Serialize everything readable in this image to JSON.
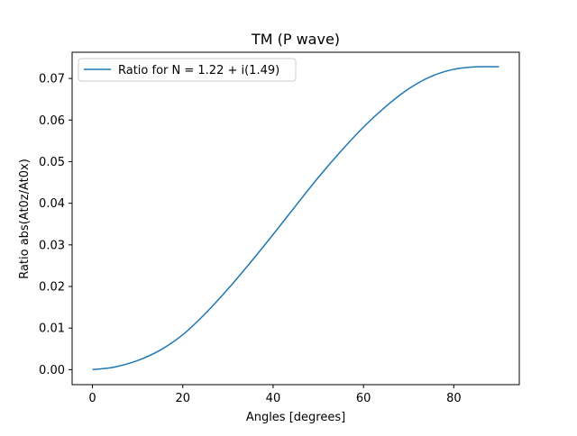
{
  "chart_data": {
    "type": "line",
    "title": "TM (P wave)",
    "xlabel": "Angles [degrees]",
    "ylabel": "Ratio abs(At0z/At0x)",
    "xlim": [
      -4.5,
      94.5
    ],
    "ylim": [
      -0.0036,
      0.0763
    ],
    "xticks": [
      0,
      20,
      40,
      60,
      80
    ],
    "xtick_labels": [
      "0",
      "20",
      "40",
      "60",
      "80"
    ],
    "yticks": [
      0.0,
      0.01,
      0.02,
      0.03,
      0.04,
      0.05,
      0.06,
      0.07
    ],
    "ytick_labels": [
      "0.00",
      "0.01",
      "0.02",
      "0.03",
      "0.04",
      "0.05",
      "0.06",
      "0.07"
    ],
    "grid": false,
    "legend_position": "upper left",
    "series": [
      {
        "name": "Ratio for N = 1.22 + i(1.49)",
        "color": "#1f77b4",
        "x": [
          0,
          5,
          10,
          15,
          20,
          25,
          30,
          35,
          40,
          45,
          50,
          55,
          60,
          65,
          70,
          75,
          80,
          85,
          90
        ],
        "y": [
          0.0,
          0.00066,
          0.0022,
          0.0047,
          0.0084,
          0.0135,
          0.0194,
          0.0258,
          0.0325,
          0.0394,
          0.0462,
          0.0525,
          0.0583,
          0.0633,
          0.0675,
          0.0705,
          0.0722,
          0.0728,
          0.0728
        ]
      }
    ]
  }
}
